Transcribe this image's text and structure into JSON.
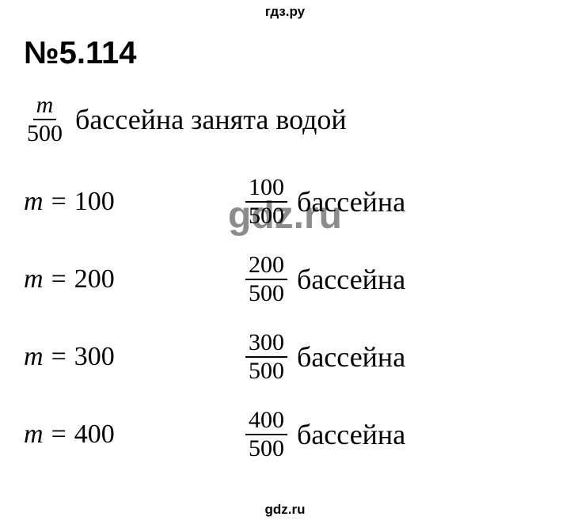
{
  "watermark": {
    "top": "гдз.ру",
    "mid": "gdz.ru",
    "bottom": "gdz.ru"
  },
  "heading": "№5.114",
  "first_line": {
    "frac_num": "m",
    "frac_den": "500",
    "text": "бассейна занята водой"
  },
  "rows": [
    {
      "var": "m",
      "eq": "=",
      "val": "100",
      "frac_num": "100",
      "frac_den": "500",
      "text": "бассейна"
    },
    {
      "var": "m",
      "eq": "=",
      "val": "200",
      "frac_num": "200",
      "frac_den": "500",
      "text": "бассейна"
    },
    {
      "var": "m",
      "eq": "=",
      "val": "300",
      "frac_num": "300",
      "frac_den": "500",
      "text": "бассейна"
    },
    {
      "var": "m",
      "eq": "=",
      "val": "400",
      "frac_num": "400",
      "frac_den": "500",
      "text": "бассейна"
    }
  ],
  "colors": {
    "background": "#ffffff",
    "text": "#000000",
    "watermark_mid": "rgba(0,0,0,0.45)"
  },
  "typography": {
    "heading_fontsize": 40,
    "body_fontsize": 34,
    "frac_fontsize": 30,
    "watermark_small_fontsize": 17,
    "watermark_mid_fontsize": 48
  }
}
